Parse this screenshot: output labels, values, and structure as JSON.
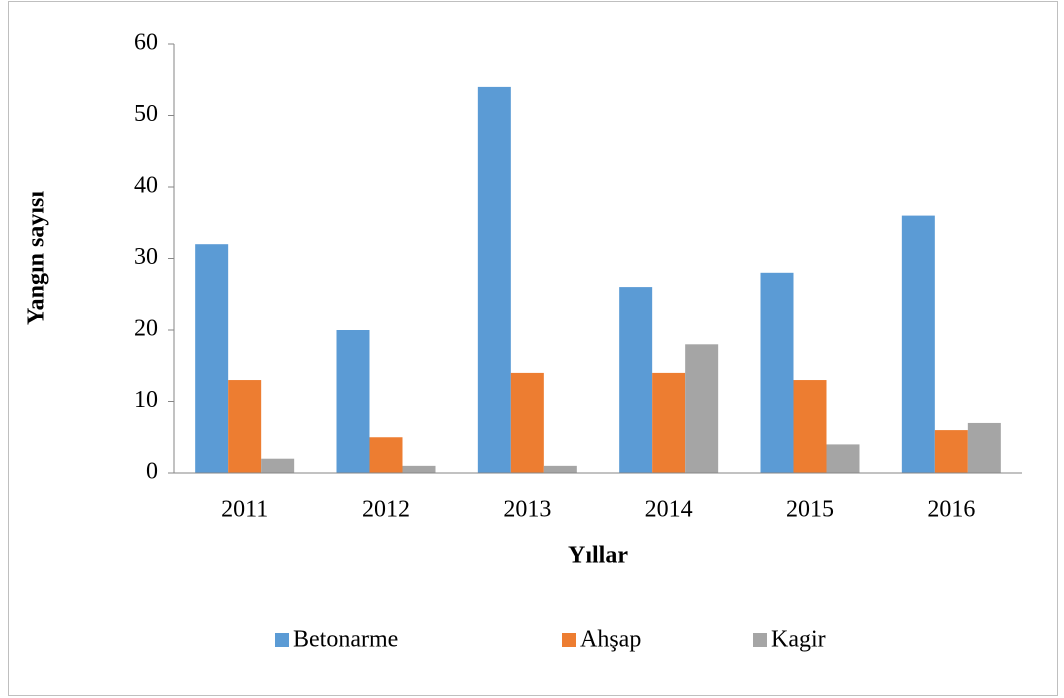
{
  "chart_data": {
    "type": "bar",
    "categories": [
      "2011",
      "2012",
      "2013",
      "2014",
      "2015",
      "2016"
    ],
    "series": [
      {
        "name": "Betonarme",
        "color": "#5b9bd5",
        "values": [
          32,
          20,
          54,
          26,
          28,
          36
        ]
      },
      {
        "name": "Ahşap",
        "color": "#ed7d31",
        "values": [
          13,
          5,
          14,
          14,
          13,
          6
        ]
      },
      {
        "name": "Kagir",
        "color": "#a5a5a5",
        "values": [
          2,
          1,
          1,
          18,
          4,
          7
        ]
      }
    ],
    "xlabel": "Yıllar",
    "ylabel": "Yangın sayısı",
    "ylim": [
      0,
      60
    ],
    "yticks": [
      0,
      10,
      20,
      30,
      40,
      50,
      60
    ],
    "grid": false,
    "legend": "bottom"
  }
}
